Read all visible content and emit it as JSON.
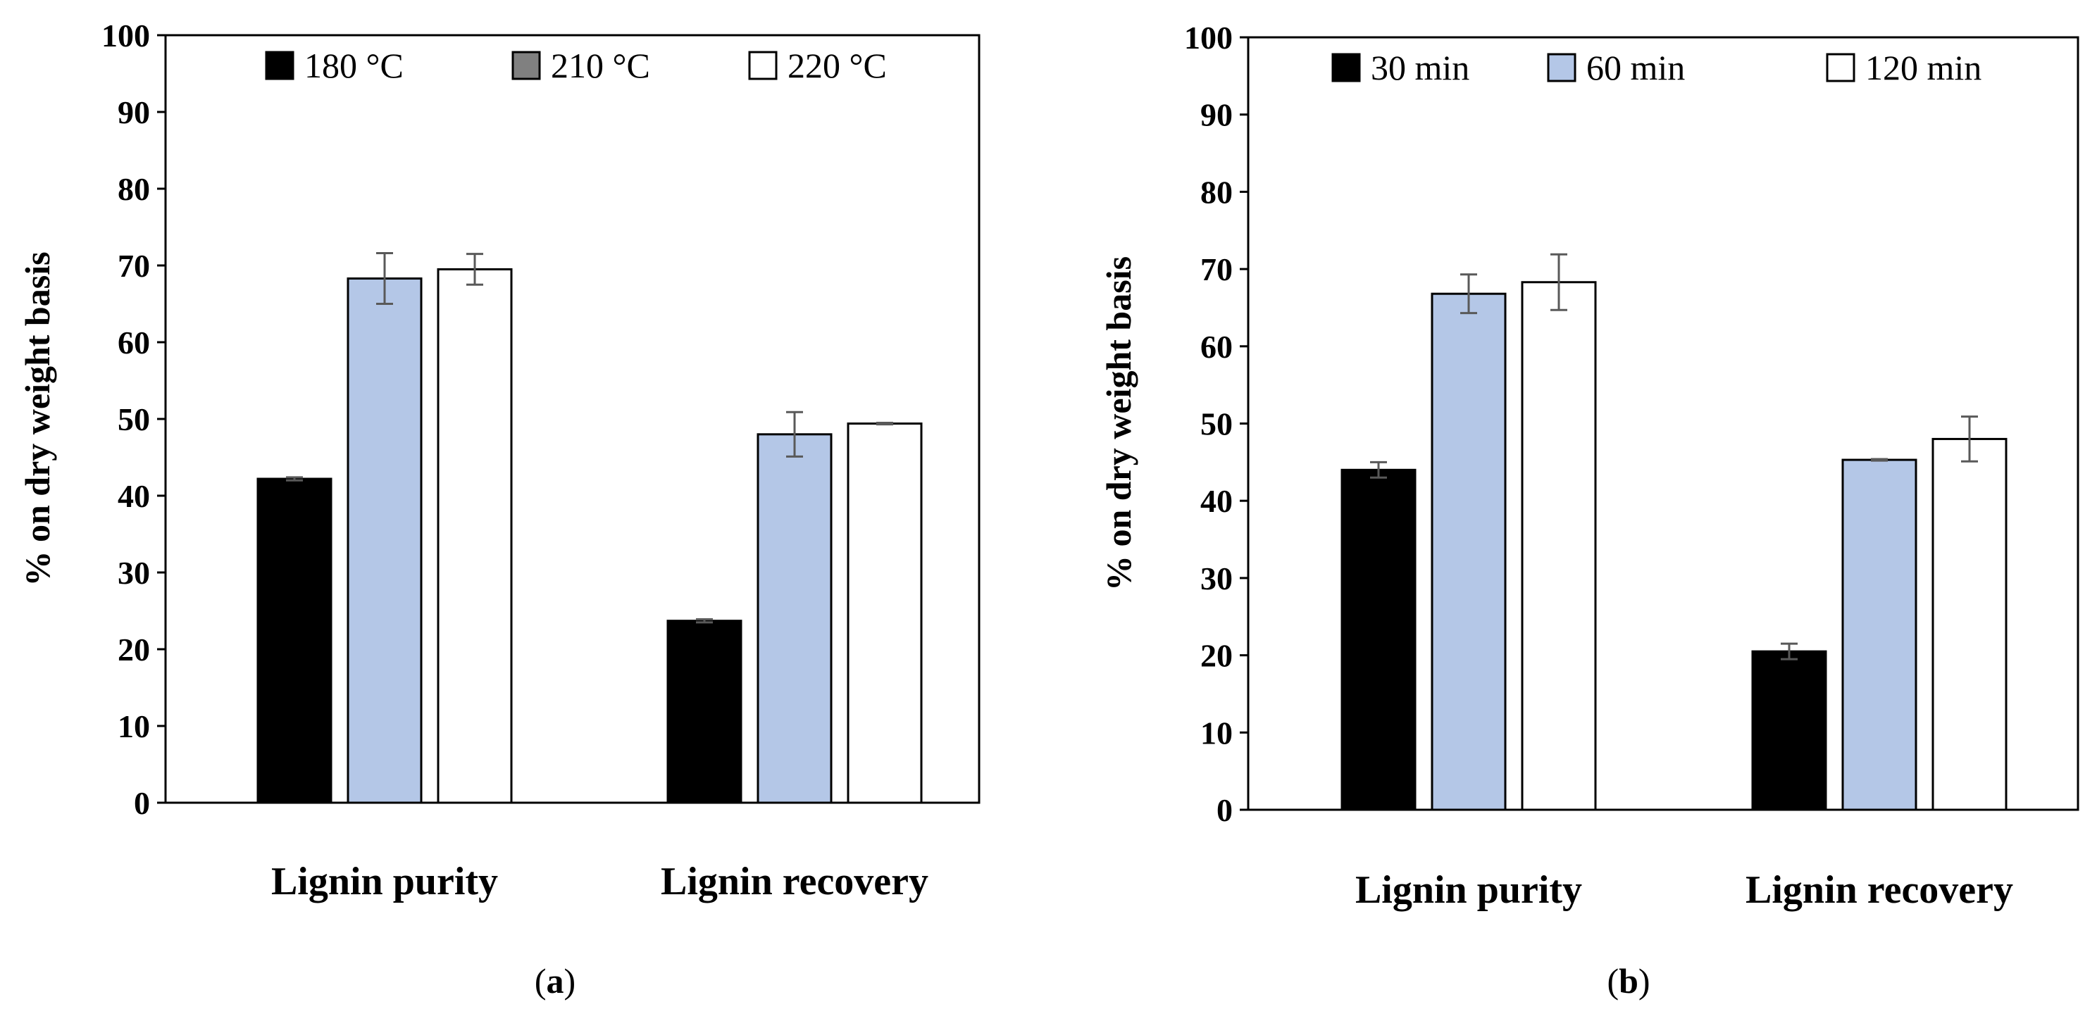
{
  "chart_data": [
    {
      "type": "bar",
      "panel": "a",
      "caption": {
        "open": "(",
        "letter": "a",
        "close": ")"
      },
      "categories": [
        "Lignin purity",
        "Lignin recovery"
      ],
      "ylabel": "% on dry weight basis",
      "ylim": [
        0,
        100
      ],
      "yticks": [
        0,
        10,
        20,
        30,
        40,
        50,
        60,
        70,
        80,
        90,
        100
      ],
      "legend_position": "top",
      "series": [
        {
          "name": "180 °C",
          "fill": "#000000",
          "legend_fill": "#000000",
          "values": [
            42.2,
            23.7
          ],
          "errors": [
            0.2,
            0.2
          ]
        },
        {
          "name": "210 °C",
          "fill": "#b4c7e7",
          "legend_fill": "#808080",
          "values": [
            68.3,
            48.0
          ],
          "errors": [
            3.3,
            2.9
          ]
        },
        {
          "name": "220 °C",
          "fill": "#ffffff",
          "legend_fill": "#ffffff",
          "values": [
            69.5,
            49.4
          ],
          "errors": [
            2.0,
            0.1
          ]
        }
      ]
    },
    {
      "type": "bar",
      "panel": "b",
      "caption": {
        "open": "(",
        "letter": "b",
        "close": ")"
      },
      "categories": [
        "Lignin purity",
        "Lignin recovery"
      ],
      "ylabel": "% on dry weight basis",
      "ylim": [
        0,
        100
      ],
      "yticks": [
        0,
        10,
        20,
        30,
        40,
        50,
        60,
        70,
        80,
        90,
        100
      ],
      "legend_position": "top",
      "series": [
        {
          "name": "30 min",
          "fill": "#000000",
          "legend_fill": "#000000",
          "values": [
            44.0,
            20.5
          ],
          "errors": [
            1.0,
            1.0
          ]
        },
        {
          "name": "60 min",
          "fill": "#b4c7e7",
          "legend_fill": "#b4c7e7",
          "values": [
            66.8,
            45.3
          ],
          "errors": [
            2.5,
            0.1
          ]
        },
        {
          "name": "120 min",
          "fill": "#ffffff",
          "legend_fill": "#ffffff",
          "values": [
            68.3,
            48.0
          ],
          "errors": [
            3.6,
            2.9
          ]
        }
      ]
    }
  ]
}
